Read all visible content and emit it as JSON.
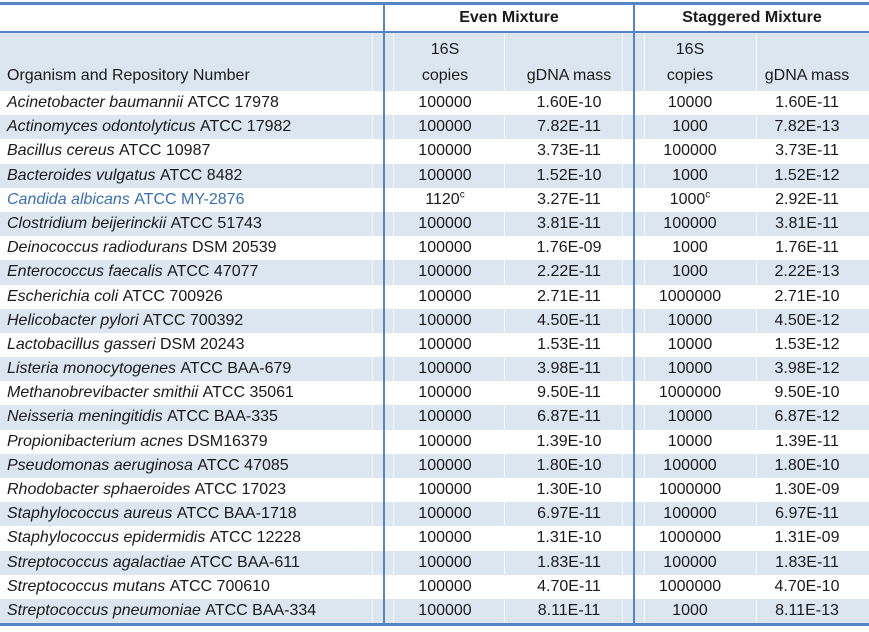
{
  "colors": {
    "border_blue": "#5585c5",
    "stripe_fill": "#dce6f1",
    "text": "#1a1a1a",
    "highlight_blue": "#3a70b2"
  },
  "table": {
    "group_headers": {
      "even": "Even Mixture",
      "staggered": "Staggered Mixture"
    },
    "column_headers": {
      "organism": "Organism and Repository Number",
      "copies_line1": "16S",
      "copies_line2": "copies",
      "gdna": "gDNA mass"
    },
    "rows": [
      {
        "name_italic": "Acinetobacter baumannii",
        "repo": "ATCC 17978",
        "even_copies": "100000",
        "even_copies_sup": "",
        "even_gdna": "1.60E-10",
        "stag_copies": "10000",
        "stag_copies_sup": "",
        "stag_gdna": "1.60E-11",
        "highlight": false
      },
      {
        "name_italic": "Actinomyces odontolyticus",
        "repo": "ATCC 17982",
        "even_copies": "100000",
        "even_copies_sup": "",
        "even_gdna": "7.82E-11",
        "stag_copies": "1000",
        "stag_copies_sup": "",
        "stag_gdna": "7.82E-13",
        "highlight": false
      },
      {
        "name_italic": "Bacillus cereus",
        "repo": "ATCC 10987",
        "even_copies": "100000",
        "even_copies_sup": "",
        "even_gdna": "3.73E-11",
        "stag_copies": "100000",
        "stag_copies_sup": "",
        "stag_gdna": "3.73E-11",
        "highlight": false
      },
      {
        "name_italic": "Bacteroides vulgatus",
        "repo": "ATCC 8482",
        "even_copies": "100000",
        "even_copies_sup": "",
        "even_gdna": "1.52E-10",
        "stag_copies": "1000",
        "stag_copies_sup": "",
        "stag_gdna": "1.52E-12",
        "highlight": false
      },
      {
        "name_italic": "Candida albicans",
        "repo": "ATCC MY-2876",
        "even_copies": "1120",
        "even_copies_sup": "c",
        "even_gdna": "3.27E-11",
        "stag_copies": "1000",
        "stag_copies_sup": "c",
        "stag_gdna": "2.92E-11",
        "highlight": true
      },
      {
        "name_italic": "Clostridium beijerinckii",
        "repo": "ATCC 51743",
        "even_copies": "100000",
        "even_copies_sup": "",
        "even_gdna": "3.81E-11",
        "stag_copies": "100000",
        "stag_copies_sup": "",
        "stag_gdna": "3.81E-11",
        "highlight": false
      },
      {
        "name_italic": "Deinococcus radiodurans",
        "repo": "DSM 20539",
        "even_copies": "100000",
        "even_copies_sup": "",
        "even_gdna": "1.76E-09",
        "stag_copies": "1000",
        "stag_copies_sup": "",
        "stag_gdna": "1.76E-11",
        "highlight": false
      },
      {
        "name_italic": "Enterococcus faecalis",
        "repo": "ATCC 47077",
        "even_copies": "100000",
        "even_copies_sup": "",
        "even_gdna": "2.22E-11",
        "stag_copies": "1000",
        "stag_copies_sup": "",
        "stag_gdna": "2.22E-13",
        "highlight": false
      },
      {
        "name_italic": "Escherichia coli",
        "repo": "ATCC 700926",
        "even_copies": "100000",
        "even_copies_sup": "",
        "even_gdna": "2.71E-11",
        "stag_copies": "1000000",
        "stag_copies_sup": "",
        "stag_gdna": "2.71E-10",
        "highlight": false
      },
      {
        "name_italic": "Helicobacter pylori",
        "repo": "ATCC 700392",
        "even_copies": "100000",
        "even_copies_sup": "",
        "even_gdna": "4.50E-11",
        "stag_copies": "10000",
        "stag_copies_sup": "",
        "stag_gdna": "4.50E-12",
        "highlight": false
      },
      {
        "name_italic": "Lactobacillus gasseri",
        "repo": "DSM 20243",
        "even_copies": "100000",
        "even_copies_sup": "",
        "even_gdna": "1.53E-11",
        "stag_copies": "10000",
        "stag_copies_sup": "",
        "stag_gdna": "1.53E-12",
        "highlight": false
      },
      {
        "name_italic": "Listeria monocytogenes",
        "repo": "ATCC BAA-679",
        "even_copies": "100000",
        "even_copies_sup": "",
        "even_gdna": "3.98E-11",
        "stag_copies": "10000",
        "stag_copies_sup": "",
        "stag_gdna": "3.98E-12",
        "highlight": false
      },
      {
        "name_italic": "Methanobrevibacter smithii",
        "repo": "ATCC 35061",
        "even_copies": "100000",
        "even_copies_sup": "",
        "even_gdna": "9.50E-11",
        "stag_copies": "1000000",
        "stag_copies_sup": "",
        "stag_gdna": "9.50E-10",
        "highlight": false
      },
      {
        "name_italic": "Neisseria meningitidis",
        "repo": "ATCC BAA-335",
        "even_copies": "100000",
        "even_copies_sup": "",
        "even_gdna": "6.87E-11",
        "stag_copies": "10000",
        "stag_copies_sup": "",
        "stag_gdna": "6.87E-12",
        "highlight": false
      },
      {
        "name_italic": "Propionibacterium acnes",
        "repo": "DSM16379",
        "even_copies": "100000",
        "even_copies_sup": "",
        "even_gdna": "1.39E-10",
        "stag_copies": "10000",
        "stag_copies_sup": "",
        "stag_gdna": "1.39E-11",
        "highlight": false
      },
      {
        "name_italic": "Pseudomonas aeruginosa",
        "repo": "ATCC 47085",
        "even_copies": "100000",
        "even_copies_sup": "",
        "even_gdna": "1.80E-10",
        "stag_copies": "100000",
        "stag_copies_sup": "",
        "stag_gdna": "1.80E-10",
        "highlight": false
      },
      {
        "name_italic": "Rhodobacter sphaeroides",
        "repo": "ATCC 17023",
        "even_copies": "100000",
        "even_copies_sup": "",
        "even_gdna": "1.30E-10",
        "stag_copies": "1000000",
        "stag_copies_sup": "",
        "stag_gdna": "1.30E-09",
        "highlight": false
      },
      {
        "name_italic": "Staphylococcus aureus",
        "repo": "ATCC BAA-1718",
        "even_copies": "100000",
        "even_copies_sup": "",
        "even_gdna": "6.97E-11",
        "stag_copies": "100000",
        "stag_copies_sup": "",
        "stag_gdna": "6.97E-11",
        "highlight": false
      },
      {
        "name_italic": "Staphylococcus epidermidis",
        "repo": "ATCC 12228",
        "even_copies": "100000",
        "even_copies_sup": "",
        "even_gdna": "1.31E-10",
        "stag_copies": "1000000",
        "stag_copies_sup": "",
        "stag_gdna": "1.31E-09",
        "highlight": false
      },
      {
        "name_italic": "Streptococcus agalactiae",
        "repo": "ATCC BAA-611",
        "even_copies": "100000",
        "even_copies_sup": "",
        "even_gdna": "1.83E-11",
        "stag_copies": "100000",
        "stag_copies_sup": "",
        "stag_gdna": "1.83E-11",
        "highlight": false
      },
      {
        "name_italic": "Streptococcus mutans",
        "repo": "ATCC 700610",
        "even_copies": "100000",
        "even_copies_sup": "",
        "even_gdna": "4.70E-11",
        "stag_copies": "1000000",
        "stag_copies_sup": "",
        "stag_gdna": "4.70E-10",
        "highlight": false
      },
      {
        "name_italic": "Streptococcus pneumoniae",
        "repo": "ATCC BAA-334",
        "even_copies": "100000",
        "even_copies_sup": "",
        "even_gdna": "8.11E-11",
        "stag_copies": "1000",
        "stag_copies_sup": "",
        "stag_gdna": "8.11E-13",
        "highlight": false
      }
    ]
  }
}
